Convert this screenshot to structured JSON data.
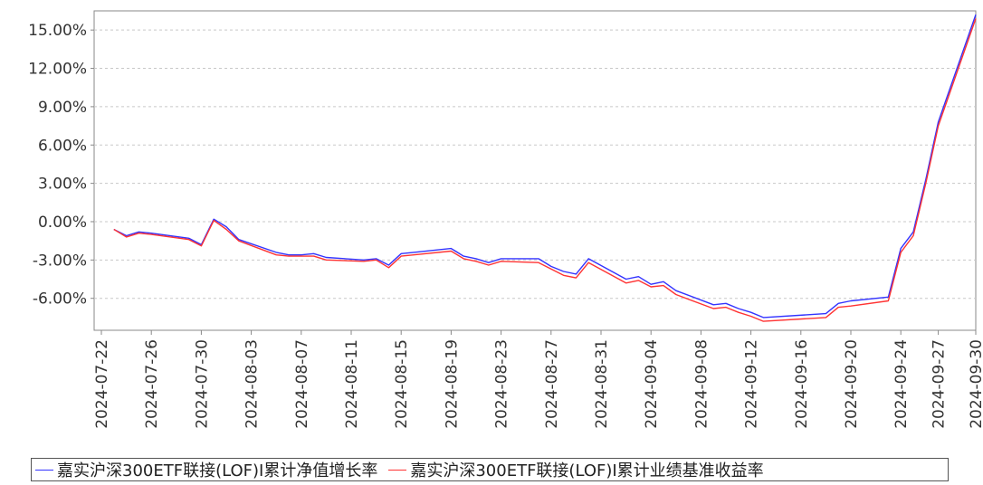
{
  "chart_data": {
    "type": "line",
    "ylim": [
      -8.5,
      16.5
    ],
    "y_ticks": [
      -6,
      -3,
      0,
      3,
      6,
      9,
      12,
      15
    ],
    "y_tick_labels": [
      "-6.00%",
      "-3.00%",
      "0.00%",
      "3.00%",
      "6.00%",
      "9.00%",
      "12.00%",
      "15.00%"
    ],
    "x_tick_dates": [
      "2024-07-22",
      "2024-07-26",
      "2024-07-30",
      "2024-08-03",
      "2024-08-07",
      "2024-08-11",
      "2024-08-15",
      "2024-08-19",
      "2024-08-23",
      "2024-08-27",
      "2024-08-31",
      "2024-09-04",
      "2024-09-08",
      "2024-09-12",
      "2024-09-16",
      "2024-09-20",
      "2024-09-24",
      "2024-09-27",
      "2024-09-30"
    ],
    "grid": true,
    "legend_position": "bottom",
    "series": [
      {
        "name": "嘉实沪深300ETF联接(LOF)I累计净值增长率",
        "color": "#3333ff",
        "points": [
          [
            "2024-07-23",
            -0.6
          ],
          [
            "2024-07-24",
            -1.1
          ],
          [
            "2024-07-25",
            -0.8
          ],
          [
            "2024-07-26",
            -0.9
          ],
          [
            "2024-07-29",
            -1.3
          ],
          [
            "2024-07-30",
            -1.8
          ],
          [
            "2024-07-31",
            0.2
          ],
          [
            "2024-08-01",
            -0.4
          ],
          [
            "2024-08-02",
            -1.4
          ],
          [
            "2024-08-05",
            -2.4
          ],
          [
            "2024-08-06",
            -2.6
          ],
          [
            "2024-08-07",
            -2.6
          ],
          [
            "2024-08-08",
            -2.5
          ],
          [
            "2024-08-09",
            -2.8
          ],
          [
            "2024-08-12",
            -3.0
          ],
          [
            "2024-08-13",
            -2.9
          ],
          [
            "2024-08-14",
            -3.4
          ],
          [
            "2024-08-15",
            -2.5
          ],
          [
            "2024-08-16",
            -2.4
          ],
          [
            "2024-08-19",
            -2.1
          ],
          [
            "2024-08-20",
            -2.7
          ],
          [
            "2024-08-21",
            -2.9
          ],
          [
            "2024-08-22",
            -3.2
          ],
          [
            "2024-08-23",
            -2.9
          ],
          [
            "2024-08-26",
            -2.9
          ],
          [
            "2024-08-27",
            -3.5
          ],
          [
            "2024-08-28",
            -3.9
          ],
          [
            "2024-08-29",
            -4.1
          ],
          [
            "2024-08-30",
            -2.9
          ],
          [
            "2024-09-02",
            -4.5
          ],
          [
            "2024-09-03",
            -4.3
          ],
          [
            "2024-09-04",
            -4.9
          ],
          [
            "2024-09-05",
            -4.7
          ],
          [
            "2024-09-06",
            -5.4
          ],
          [
            "2024-09-09",
            -6.5
          ],
          [
            "2024-09-10",
            -6.4
          ],
          [
            "2024-09-11",
            -6.8
          ],
          [
            "2024-09-12",
            -7.1
          ],
          [
            "2024-09-13",
            -7.5
          ],
          [
            "2024-09-18",
            -7.2
          ],
          [
            "2024-09-19",
            -6.4
          ],
          [
            "2024-09-20",
            -6.2
          ],
          [
            "2024-09-23",
            -5.9
          ],
          [
            "2024-09-24",
            -2.1
          ],
          [
            "2024-09-25",
            -0.8
          ],
          [
            "2024-09-26",
            3.3
          ],
          [
            "2024-09-27",
            7.8
          ],
          [
            "2024-09-30",
            16.2
          ]
        ]
      },
      {
        "name": "嘉实沪深300ETF联接(LOF)I累计业绩基准收益率",
        "color": "#ff3333",
        "points": [
          [
            "2024-07-23",
            -0.6
          ],
          [
            "2024-07-24",
            -1.2
          ],
          [
            "2024-07-25",
            -0.9
          ],
          [
            "2024-07-26",
            -1.0
          ],
          [
            "2024-07-29",
            -1.4
          ],
          [
            "2024-07-30",
            -1.9
          ],
          [
            "2024-07-31",
            0.1
          ],
          [
            "2024-08-01",
            -0.6
          ],
          [
            "2024-08-02",
            -1.5
          ],
          [
            "2024-08-05",
            -2.6
          ],
          [
            "2024-08-06",
            -2.7
          ],
          [
            "2024-08-07",
            -2.7
          ],
          [
            "2024-08-08",
            -2.7
          ],
          [
            "2024-08-09",
            -3.0
          ],
          [
            "2024-08-12",
            -3.1
          ],
          [
            "2024-08-13",
            -3.0
          ],
          [
            "2024-08-14",
            -3.6
          ],
          [
            "2024-08-15",
            -2.7
          ],
          [
            "2024-08-16",
            -2.6
          ],
          [
            "2024-08-19",
            -2.3
          ],
          [
            "2024-08-20",
            -2.9
          ],
          [
            "2024-08-21",
            -3.1
          ],
          [
            "2024-08-22",
            -3.4
          ],
          [
            "2024-08-23",
            -3.1
          ],
          [
            "2024-08-26",
            -3.2
          ],
          [
            "2024-08-27",
            -3.7
          ],
          [
            "2024-08-28",
            -4.2
          ],
          [
            "2024-08-29",
            -4.4
          ],
          [
            "2024-08-30",
            -3.2
          ],
          [
            "2024-09-02",
            -4.8
          ],
          [
            "2024-09-03",
            -4.6
          ],
          [
            "2024-09-04",
            -5.1
          ],
          [
            "2024-09-05",
            -5.0
          ],
          [
            "2024-09-06",
            -5.7
          ],
          [
            "2024-09-09",
            -6.8
          ],
          [
            "2024-09-10",
            -6.7
          ],
          [
            "2024-09-11",
            -7.1
          ],
          [
            "2024-09-12",
            -7.4
          ],
          [
            "2024-09-13",
            -7.8
          ],
          [
            "2024-09-18",
            -7.5
          ],
          [
            "2024-09-19",
            -6.7
          ],
          [
            "2024-09-20",
            -6.6
          ],
          [
            "2024-09-23",
            -6.2
          ],
          [
            "2024-09-24",
            -2.4
          ],
          [
            "2024-09-25",
            -1.1
          ],
          [
            "2024-09-26",
            3.0
          ],
          [
            "2024-09-27",
            7.5
          ],
          [
            "2024-09-30",
            15.9
          ]
        ]
      }
    ]
  }
}
